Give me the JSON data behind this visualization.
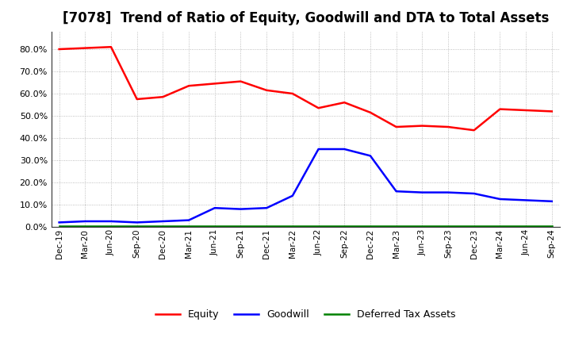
{
  "title": "[7078]  Trend of Ratio of Equity, Goodwill and DTA to Total Assets",
  "x_labels": [
    "Dec-19",
    "Mar-20",
    "Jun-20",
    "Sep-20",
    "Dec-20",
    "Mar-21",
    "Jun-21",
    "Sep-21",
    "Dec-21",
    "Mar-22",
    "Jun-22",
    "Sep-22",
    "Dec-22",
    "Mar-23",
    "Jun-23",
    "Sep-23",
    "Dec-23",
    "Mar-24",
    "Jun-24",
    "Sep-24"
  ],
  "equity": [
    80.0,
    80.5,
    81.0,
    57.5,
    58.5,
    63.5,
    64.5,
    65.5,
    61.5,
    60.0,
    53.5,
    56.0,
    51.5,
    45.0,
    45.5,
    45.0,
    43.5,
    53.0,
    52.5,
    52.0
  ],
  "goodwill": [
    2.0,
    2.5,
    2.5,
    2.0,
    2.5,
    3.0,
    8.5,
    8.0,
    8.5,
    14.0,
    35.0,
    35.0,
    32.0,
    16.0,
    15.5,
    15.5,
    15.0,
    12.5,
    12.0,
    11.5
  ],
  "dta": [
    0.5,
    0.5,
    0.5,
    0.5,
    0.5,
    0.5,
    0.5,
    0.5,
    0.5,
    0.5,
    0.5,
    0.5,
    0.5,
    0.5,
    0.5,
    0.5,
    0.5,
    0.5,
    0.5,
    0.5
  ],
  "equity_color": "#ff0000",
  "goodwill_color": "#0000ff",
  "dta_color": "#008000",
  "bg_color": "#ffffff",
  "grid_color": "#999999",
  "ylim": [
    0,
    88
  ],
  "yticks": [
    0,
    10,
    20,
    30,
    40,
    50,
    60,
    70,
    80
  ],
  "title_fontsize": 12,
  "legend_labels": [
    "Equity",
    "Goodwill",
    "Deferred Tax Assets"
  ]
}
